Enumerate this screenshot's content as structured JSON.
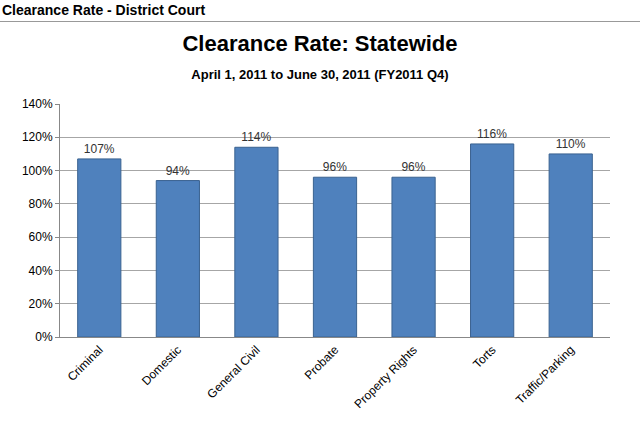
{
  "header": "Clearance Rate - District Court",
  "chart_data": {
    "type": "bar",
    "title": "Clearance Rate: Statewide",
    "subtitle": "April 1, 2011 to June 30, 2011 (FY2011 Q4)",
    "categories": [
      "Criminal",
      "Domestic",
      "General Civil",
      "Probate",
      "Property Rights",
      "Torts",
      "Traffic/Parking"
    ],
    "values": [
      107,
      94,
      114,
      96,
      96,
      116,
      110
    ],
    "value_labels": [
      "107%",
      "94%",
      "114%",
      "96%",
      "96%",
      "116%",
      "110%"
    ],
    "color": "#4f81bd",
    "ylim": [
      0,
      140
    ],
    "yticks": [
      {
        "value": 0,
        "label": "0%"
      },
      {
        "value": 20,
        "label": "20%"
      },
      {
        "value": 40,
        "label": "40%"
      },
      {
        "value": 60,
        "label": "60%"
      },
      {
        "value": 80,
        "label": "80%"
      },
      {
        "value": 100,
        "label": "100%"
      },
      {
        "value": 120,
        "label": "120%"
      },
      {
        "value": 140,
        "label": "140%"
      }
    ],
    "grid": true,
    "data_labels": true
  }
}
